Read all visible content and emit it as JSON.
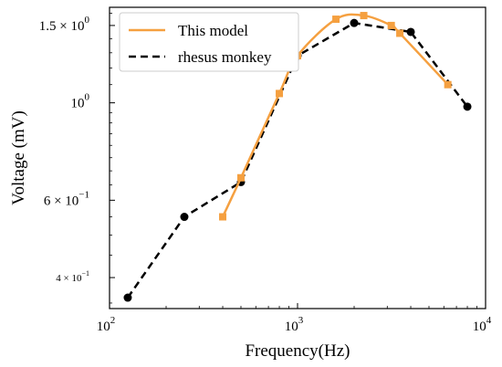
{
  "chart_data": {
    "type": "line",
    "xlabel": "Frequency(Hz)",
    "ylabel": "Voltage (mV)",
    "x_scale": "log",
    "y_scale": "log",
    "xlim": [
      100,
      10000
    ],
    "ylim": [
      0.34,
      1.65
    ],
    "x_ticks": [
      {
        "value": 100,
        "mantissa": "10",
        "exp": "2"
      },
      {
        "value": 1000,
        "mantissa": "10",
        "exp": "3"
      },
      {
        "value": 10000,
        "mantissa": "10",
        "exp": "4"
      }
    ],
    "y_ticks": [
      {
        "value": 0.4,
        "label": "4 × 10",
        "exp": "−1",
        "small": true
      },
      {
        "value": 0.6,
        "label": "6 × 10",
        "exp": "−1",
        "small": false
      },
      {
        "value": 1.0,
        "label": "10",
        "exp": "0",
        "small": false
      },
      {
        "value": 1.5,
        "label": "1.5 × 10",
        "exp": "0",
        "small": false
      }
    ],
    "legend_position": "top-left",
    "series": [
      {
        "name": "This model",
        "color": "#f5a040",
        "line_style": "solid",
        "marker": "square",
        "x": [
          400,
          500,
          800,
          1000,
          1600,
          2250,
          3150,
          3500,
          6300
        ],
        "y": [
          0.55,
          0.675,
          1.05,
          1.28,
          1.55,
          1.58,
          1.5,
          1.44,
          1.1
        ]
      },
      {
        "name": "rhesus monkey",
        "color": "#000000",
        "line_style": "dashed",
        "marker": "circle",
        "x": [
          125,
          250,
          500,
          1000,
          2000,
          4000,
          8000
        ],
        "y": [
          0.36,
          0.55,
          0.66,
          1.28,
          1.52,
          1.45,
          0.98
        ]
      }
    ]
  }
}
